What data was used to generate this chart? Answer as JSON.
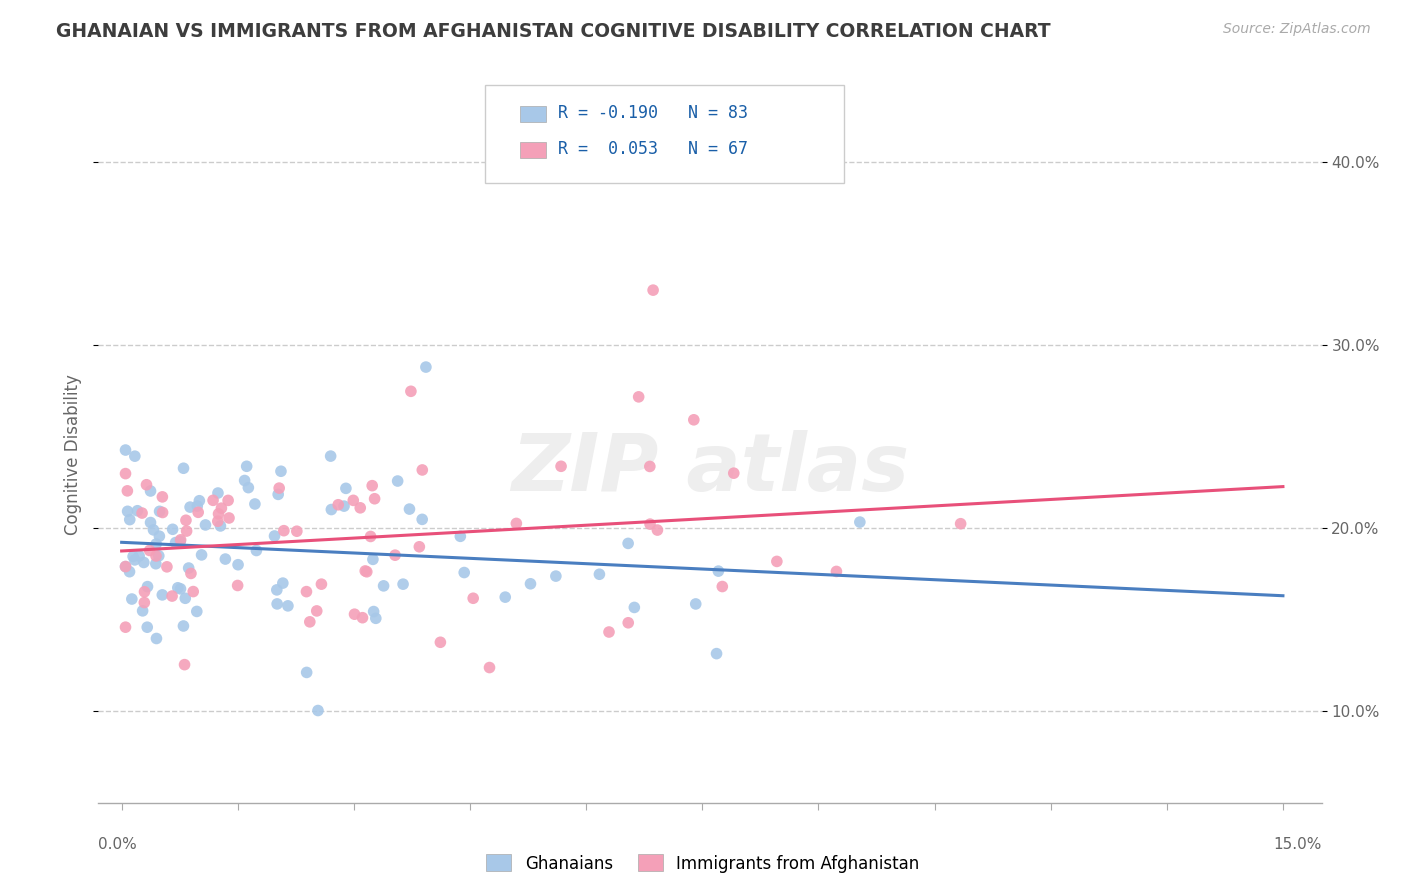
{
  "title": "GHANAIAN VS IMMIGRANTS FROM AFGHANISTAN COGNITIVE DISABILITY CORRELATION CHART",
  "source": "Source: ZipAtlas.com",
  "ylabel": "Cognitive Disability",
  "xlim": [
    0.0,
    15.0
  ],
  "ylim": [
    5.0,
    43.0
  ],
  "yticks": [
    10.0,
    20.0,
    30.0,
    40.0
  ],
  "color_blue": "#A8C8E8",
  "color_pink": "#F4A0B8",
  "color_blue_line": "#4A7EC0",
  "color_pink_line": "#E8507A",
  "color_title": "#3B3B3B",
  "color_legend_r": "#1A5FA8",
  "color_source": "#999999",
  "background_color": "#FFFFFF",
  "grid_color": "#CCCCCC",
  "R1": "-0.190",
  "N1": "83",
  "R2": "0.053",
  "N2": "67",
  "legend_label_gh": "Ghanaians",
  "legend_label_af": "Immigrants from Afghanistan",
  "watermark": "ZIPatlas"
}
